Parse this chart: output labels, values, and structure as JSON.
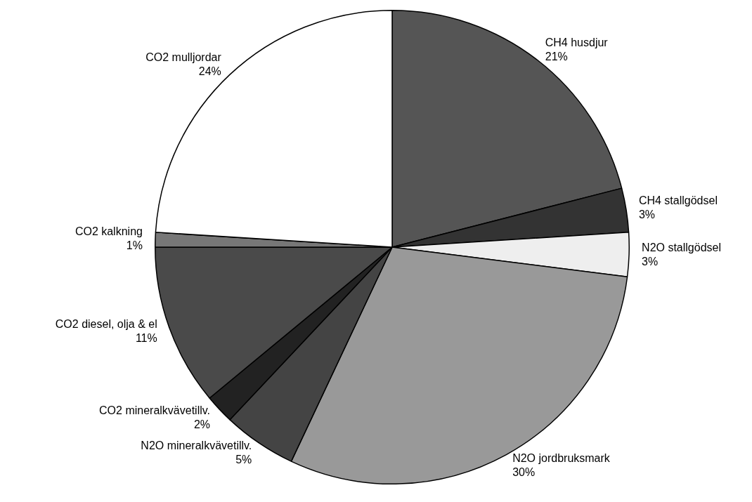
{
  "chart_data": {
    "type": "pie",
    "categories": [
      "CH4 husdjur",
      "CH4 stallgödsel",
      "N2O stallgödsel",
      "N2O jordbruksmark",
      "N2O mineralkvävetillv.",
      "CO2 mineralkvävetillv.",
      "CO2 diesel, olja & el",
      "CO2 kalkning",
      "CO2 mulljordar"
    ],
    "values": [
      21,
      3,
      3,
      30,
      5,
      2,
      11,
      1,
      24
    ],
    "value_labels": [
      "21%",
      "3%",
      "3%",
      "30%",
      "5%",
      "2%",
      "11%",
      "1%",
      "24%"
    ],
    "colors": [
      "#555555",
      "#333333",
      "#eeeeee",
      "#999999",
      "#444444",
      "#222222",
      "#4a4a4a",
      "#777777",
      "#ffffff"
    ],
    "legend": false
  }
}
